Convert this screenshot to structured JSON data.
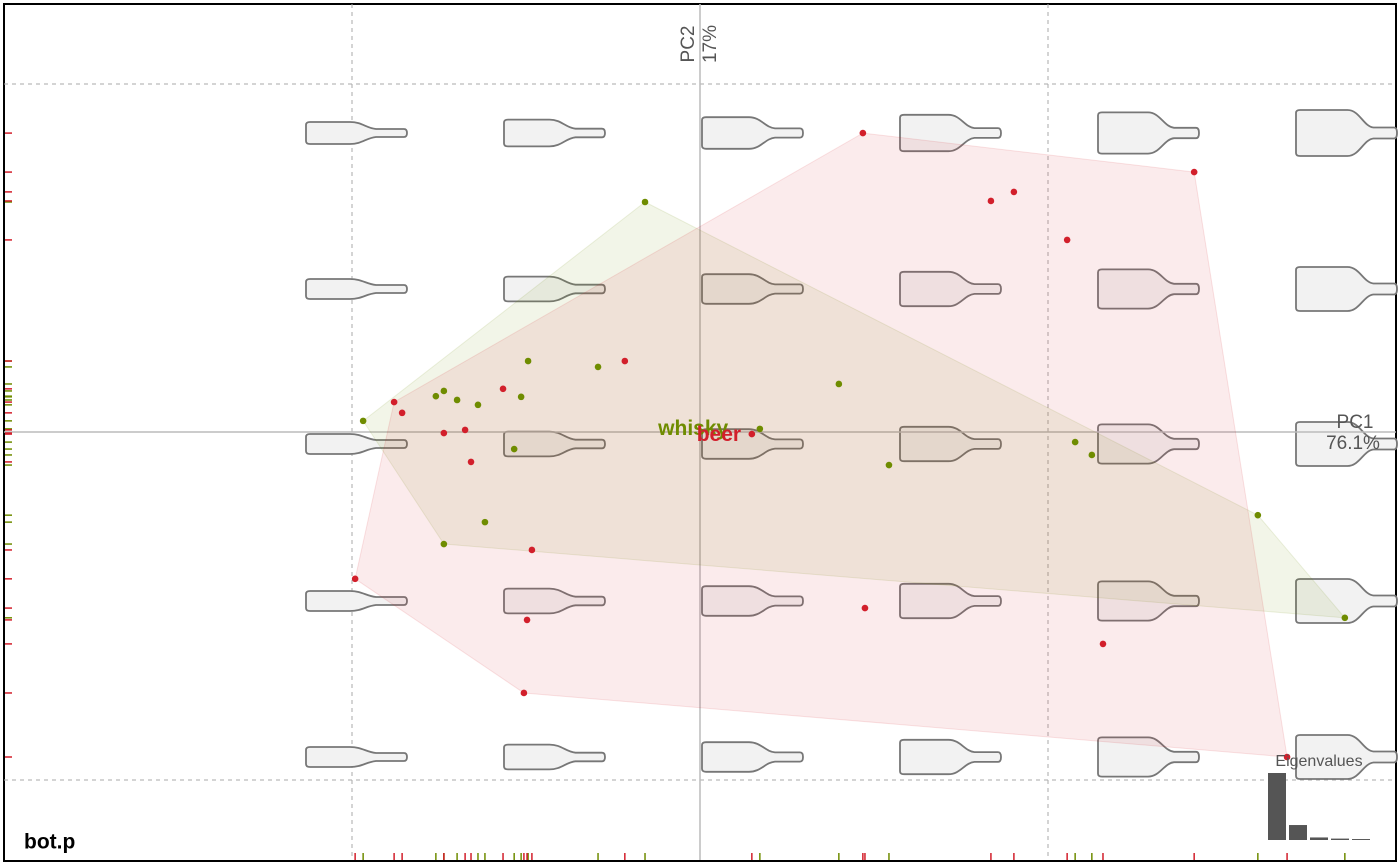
{
  "chart_data": {
    "type": "scatter",
    "corner_label": "bot.p",
    "xlabel": "PC1",
    "x_variance": {
      "value": 76.1,
      "label": "76.1%"
    },
    "ylabel": "PC2",
    "y_variance": {
      "value": 17,
      "label": "17%"
    },
    "xlim": [
      -0.2,
      0.2
    ],
    "ylim": [
      -0.123,
      0.123
    ],
    "xgrid": [
      -0.1,
      0.1
    ],
    "ygrid": [
      -0.1,
      0.1
    ],
    "series": [
      {
        "name": "whisky",
        "color": "#6f8c00",
        "x": [
          -0.0158,
          -0.0968,
          -0.0494,
          -0.0293,
          -0.0759,
          -0.0736,
          -0.0698,
          -0.0638,
          -0.0514,
          -0.0534,
          0.0172,
          0.0399,
          0.0543,
          -0.0618,
          -0.0736,
          0.1078,
          0.1126,
          0.1603,
          0.1853
        ],
        "values": [
          0.0661,
          0.0032,
          0.0204,
          0.0187,
          0.0103,
          0.0118,
          0.0092,
          0.0078,
          0.0101,
          -0.0049,
          0.0009,
          0.0138,
          -0.0095,
          -0.0259,
          -0.0322,
          -0.0029,
          -0.0066,
          -0.0239,
          -0.0534
        ]
      },
      {
        "name": "beer",
        "color": "#d21f2b",
        "x": [
          0.0468,
          0.142,
          0.0836,
          0.0902,
          0.1055,
          -0.0216,
          -0.0566,
          -0.0879,
          -0.0856,
          -0.0736,
          -0.0675,
          -0.0658,
          -0.0483,
          -0.0991,
          -0.0497,
          -0.0506,
          0.0474,
          0.1158,
          0.0149,
          0.1687
        ],
        "values": [
          0.0859,
          0.0747,
          0.0664,
          0.069,
          0.0552,
          0.0204,
          0.0124,
          0.0086,
          0.0055,
          -0.0003,
          0.0006,
          -0.0086,
          -0.0339,
          -0.0422,
          -0.054,
          -0.075,
          -0.0506,
          -0.0609,
          -0.0006,
          -0.0934
        ]
      }
    ],
    "eigenvalues": {
      "title": "Eigenvalues",
      "color": "#555555",
      "values": [
        76.1,
        17,
        2.9,
        1.6,
        1.1
      ]
    }
  }
}
